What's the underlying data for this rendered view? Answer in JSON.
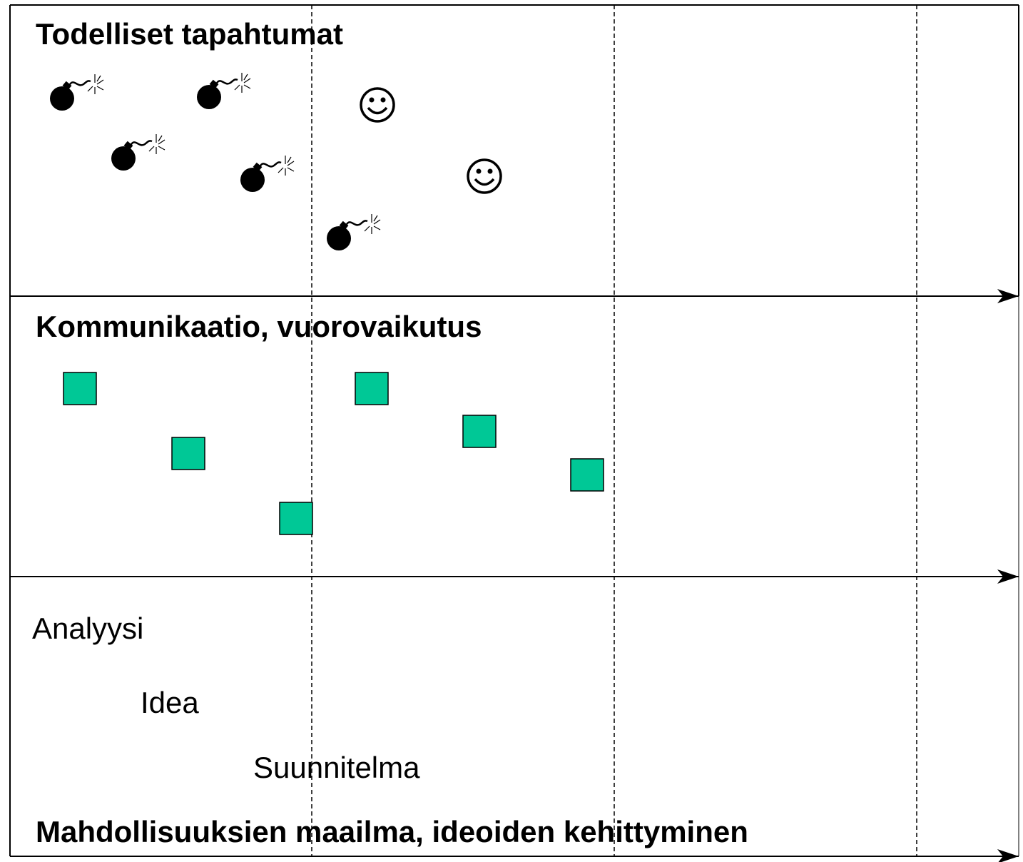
{
  "sections": {
    "events": {
      "title": "Todelliset tapahtumat"
    },
    "communication": {
      "title": "Kommunikaatio, vuorovaikutus"
    },
    "possibilities": {
      "title": "Mahdollisuuksien maailma, ideoiden kehittyminen",
      "stages": [
        "Analyysi",
        "Idea",
        "Suunnitelma"
      ]
    }
  }
}
